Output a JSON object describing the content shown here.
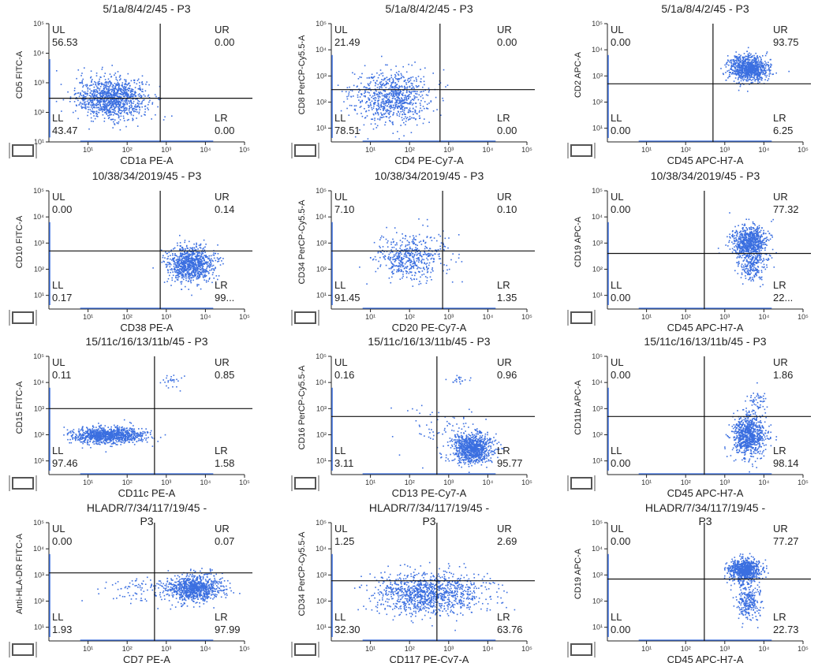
{
  "colors": {
    "dots": "#3b6fe0",
    "axis": "#222222",
    "gate": "#111111",
    "gate_marker": "#555555"
  },
  "icons": {
    "gate_marker": "rectangle-gate-icon"
  },
  "chart_data": [
    {
      "type": "scatter",
      "title": "5/1a/8/4/2/45 - P3",
      "xlabel": "CD1a PE-A",
      "ylabel": "CD5 FITC-A",
      "xlim": [
        1,
        100000
      ],
      "ylim": [
        10,
        100000
      ],
      "log_scale": true,
      "quadrant_x": 700,
      "quadrant_y": 300,
      "x_ticks": [
        "10¹",
        "10²",
        "10³",
        "10⁴",
        "10⁵"
      ],
      "y_ticks": [
        "10¹",
        "10²",
        "10³",
        "10⁴",
        "10⁵"
      ],
      "quadrants": {
        "UL": "56.53",
        "UR": "0.00",
        "LL": "43.47",
        "LR": "0.00"
      }
    },
    {
      "type": "scatter",
      "title": "5/1a/8/4/2/45 - P3",
      "xlabel": "CD4 PE-Cy7-A",
      "ylabel": "CD8 PerCP-Cy5.5-A",
      "xlim": [
        1,
        100000
      ],
      "ylim": [
        3,
        100000
      ],
      "log_scale": true,
      "quadrant_x": 600,
      "quadrant_y": 300,
      "x_ticks": [
        "10¹",
        "10²",
        "10³",
        "10⁴",
        "10⁵"
      ],
      "y_ticks": [
        "10¹",
        "10²",
        "10³",
        "10⁴",
        "10⁵"
      ],
      "quadrants": {
        "UL": "21.49",
        "UR": "0.00",
        "LL": "78.51",
        "LR": "0.00"
      }
    },
    {
      "type": "scatter",
      "title": "5/1a/8/4/2/45 - P3",
      "xlabel": "CD45 APC-H7-A",
      "ylabel": "CD2 APC-A",
      "xlim": [
        1,
        100000
      ],
      "ylim": [
        3,
        100000
      ],
      "log_scale": true,
      "quadrant_x": 500,
      "quadrant_y": 500,
      "x_ticks": [
        "10¹",
        "10²",
        "10³",
        "10⁴",
        "10⁵"
      ],
      "y_ticks": [
        "10¹",
        "10²",
        "10³",
        "10⁴",
        "10⁵"
      ],
      "quadrants": {
        "UL": "0.00",
        "UR": "93.75",
        "LL": "0.00",
        "LR": "6.25"
      }
    },
    {
      "type": "scatter",
      "title": "10/38/34/2019/45 - P3",
      "xlabel": "CD38 PE-A",
      "ylabel": "CD10 FITC-A",
      "xlim": [
        1,
        100000
      ],
      "ylim": [
        3,
        100000
      ],
      "log_scale": true,
      "quadrant_x": 700,
      "quadrant_y": 500,
      "x_ticks": [
        "10¹",
        "10²",
        "10³",
        "10⁴",
        "10⁵"
      ],
      "y_ticks": [
        "10¹",
        "10²",
        "10³",
        "10⁴",
        "10⁵"
      ],
      "quadrants": {
        "UL": "0.00",
        "UR": "0.14",
        "LL": "0.17",
        "LR": "99..."
      }
    },
    {
      "type": "scatter",
      "title": "10/38/34/2019/45 - P3",
      "xlabel": "CD20 PE-Cy7-A",
      "ylabel": "CD34 PerCP-Cy5.5-A",
      "xlim": [
        1,
        100000
      ],
      "ylim": [
        3,
        100000
      ],
      "log_scale": true,
      "quadrant_x": 700,
      "quadrant_y": 500,
      "x_ticks": [
        "10¹",
        "10²",
        "10³",
        "10⁴",
        "10⁵"
      ],
      "y_ticks": [
        "10¹",
        "10²",
        "10³",
        "10⁴",
        "10⁵"
      ],
      "quadrants": {
        "UL": "7.10",
        "UR": "0.10",
        "LL": "91.45",
        "LR": "1.35"
      }
    },
    {
      "type": "scatter",
      "title": "10/38/34/2019/45 - P3",
      "xlabel": "CD45 APC-H7-A",
      "ylabel": "CD19 APC-A",
      "xlim": [
        1,
        100000
      ],
      "ylim": [
        3,
        100000
      ],
      "log_scale": true,
      "quadrant_x": 300,
      "quadrant_y": 400,
      "x_ticks": [
        "10¹",
        "10²",
        "10³",
        "10⁴",
        "10⁵"
      ],
      "y_ticks": [
        "10¹",
        "10²",
        "10³",
        "10⁴",
        "10⁵"
      ],
      "quadrants": {
        "UL": "0.00",
        "UR": "77.32",
        "LL": "0.00",
        "LR": "22..."
      }
    },
    {
      "type": "scatter",
      "title": "15/11c/16/13/11b/45 - P3",
      "xlabel": "CD11c PE-A",
      "ylabel": "CD15 FITC-A",
      "xlim": [
        1,
        100000
      ],
      "ylim": [
        3,
        100000
      ],
      "log_scale": true,
      "quadrant_x": 500,
      "quadrant_y": 1000,
      "x_ticks": [
        "10¹",
        "10²",
        "10³",
        "10⁴",
        "10⁵"
      ],
      "y_ticks": [
        "10¹",
        "10²",
        "10³",
        "10⁴",
        "10⁵"
      ],
      "quadrants": {
        "UL": "0.11",
        "UR": "0.85",
        "LL": "97.46",
        "LR": "1.58"
      }
    },
    {
      "type": "scatter",
      "title": "15/11c/16/13/11b/45 - P3",
      "xlabel": "CD13 PE-Cy7-A",
      "ylabel": "CD16 PerCP-Cy5.5-A",
      "xlim": [
        1,
        100000
      ],
      "ylim": [
        3,
        100000
      ],
      "log_scale": true,
      "quadrant_x": 500,
      "quadrant_y": 500,
      "x_ticks": [
        "10¹",
        "10²",
        "10³",
        "10⁴",
        "10⁵"
      ],
      "y_ticks": [
        "10¹",
        "10²",
        "10³",
        "10⁴",
        "10⁵"
      ],
      "quadrants": {
        "UL": "0.16",
        "UR": "0.96",
        "LL": "3.11",
        "LR": "95.77"
      }
    },
    {
      "type": "scatter",
      "title": "15/11c/16/13/11b/45 - P3",
      "xlabel": "CD45 APC-H7-A",
      "ylabel": "CD11b APC-A",
      "xlim": [
        1,
        100000
      ],
      "ylim": [
        3,
        100000
      ],
      "log_scale": true,
      "quadrant_x": 300,
      "quadrant_y": 500,
      "x_ticks": [
        "10¹",
        "10²",
        "10³",
        "10⁴",
        "10⁵"
      ],
      "y_ticks": [
        "10¹",
        "10²",
        "10³",
        "10⁴",
        "10⁵"
      ],
      "quadrants": {
        "UL": "0.00",
        "UR": "1.86",
        "LL": "0.00",
        "LR": "98.14"
      }
    },
    {
      "type": "scatter",
      "title": "HLADR/7/34/117/19/45 -",
      "title2": "P3",
      "xlabel": "CD7 PE-A",
      "ylabel": "Anti-HLA-DR FITC-A",
      "xlim": [
        1,
        100000
      ],
      "ylim": [
        3,
        100000
      ],
      "log_scale": true,
      "quadrant_x": 500,
      "quadrant_y": 1200,
      "x_ticks": [
        "10¹",
        "10²",
        "10³",
        "10⁴",
        "10⁵"
      ],
      "y_ticks": [
        "10¹",
        "10²",
        "10³",
        "10⁴",
        "10⁵"
      ],
      "quadrants": {
        "UL": "0.00",
        "UR": "0.07",
        "LL": "1.93",
        "LR": "97.99"
      }
    },
    {
      "type": "scatter",
      "title": "HLADR/7/34/117/19/45 -",
      "title2": "P3",
      "xlabel": "CD117 PE-Cy7-A",
      "ylabel": "CD34 PerCP-Cy5.5-A",
      "xlim": [
        1,
        100000
      ],
      "ylim": [
        3,
        100000
      ],
      "log_scale": true,
      "quadrant_x": 500,
      "quadrant_y": 600,
      "x_ticks": [
        "10¹",
        "10²",
        "10³",
        "10⁴",
        "10⁵"
      ],
      "y_ticks": [
        "10¹",
        "10²",
        "10³",
        "10⁴",
        "10⁵"
      ],
      "quadrants": {
        "UL": "1.25",
        "UR": "2.69",
        "LL": "32.30",
        "LR": "63.76"
      }
    },
    {
      "type": "scatter",
      "title": "HLADR/7/34/117/19/45 -",
      "title2": "P3",
      "xlabel": "CD45 APC-H7-A",
      "ylabel": "CD19 APC-A",
      "xlim": [
        1,
        100000
      ],
      "ylim": [
        3,
        100000
      ],
      "log_scale": true,
      "quadrant_x": 300,
      "quadrant_y": 700,
      "x_ticks": [
        "10¹",
        "10²",
        "10³",
        "10⁴",
        "10⁵"
      ],
      "y_ticks": [
        "10¹",
        "10²",
        "10³",
        "10⁴",
        "10⁵"
      ],
      "quadrants": {
        "UL": "0.00",
        "UR": "77.27",
        "LL": "0.00",
        "LR": "22.73"
      }
    }
  ]
}
